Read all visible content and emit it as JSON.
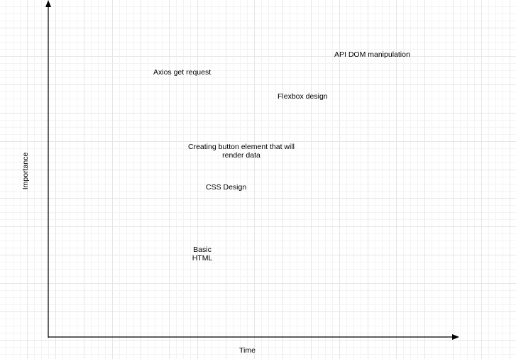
{
  "axes": {
    "x_label": "Time",
    "y_label": "Importance"
  },
  "nodes": [
    {
      "id": "api-dom",
      "text": "API DOM manipulation"
    },
    {
      "id": "axios",
      "text": "Axios get request"
    },
    {
      "id": "flexbox",
      "text": "Flexbox design"
    },
    {
      "id": "button",
      "text": "Creating button element  that will render data"
    },
    {
      "id": "css",
      "text": "CSS Design"
    },
    {
      "id": "html",
      "text": "Basic HTML"
    }
  ]
}
